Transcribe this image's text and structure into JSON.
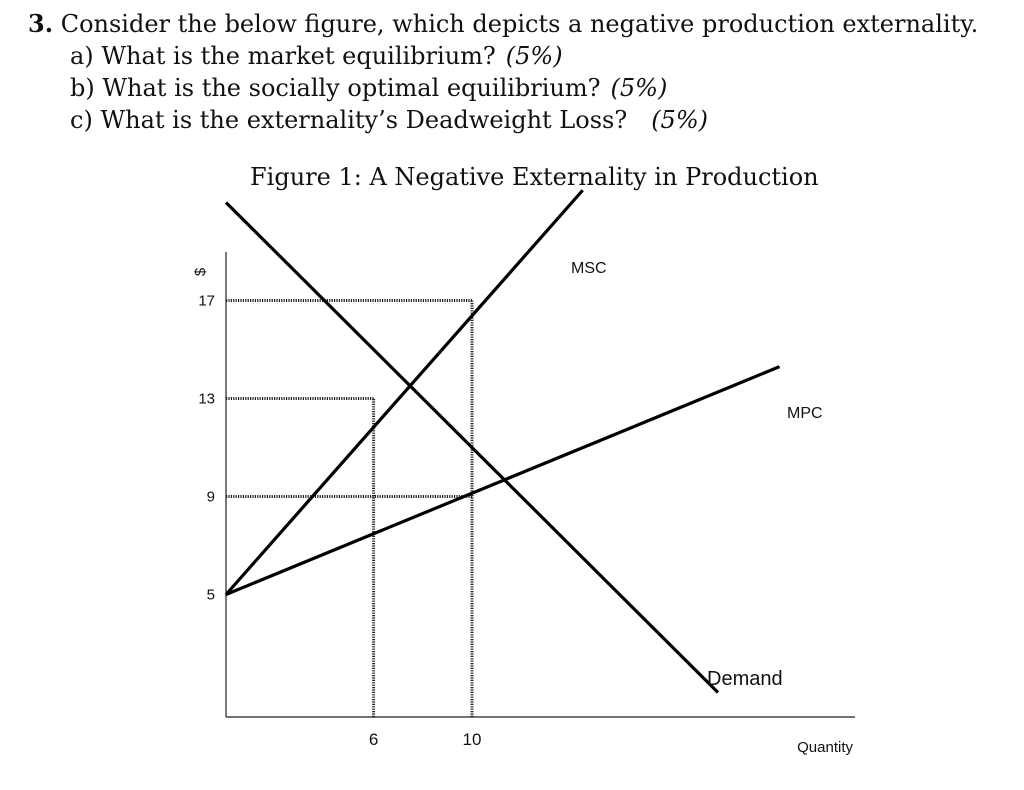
{
  "question": {
    "number": "3.",
    "prompt": "Consider the below figure, which depicts a negative production externality.",
    "parts": [
      {
        "label": "a)",
        "text": "What is the market equilibrium?",
        "points": "(5%)"
      },
      {
        "label": "b)",
        "text": "What is the socially optimal equilibrium?",
        "points": "(5%)"
      },
      {
        "label": "c)",
        "text": "What is the externality’s Deadweight Loss?",
        "points": "(5%)"
      }
    ]
  },
  "figure": {
    "caption": "Figure 1: A Negative Externality in Production"
  },
  "chart_data": {
    "type": "line",
    "ylabel": "$",
    "xlabel": "Quantity",
    "y_ticks": [
      5,
      9,
      13,
      17
    ],
    "x_ticks": [
      6,
      10
    ],
    "series": [
      {
        "name": "Demand",
        "points": [
          [
            0,
            21
          ],
          [
            20,
            1
          ]
        ]
      },
      {
        "name": "MSC",
        "points": [
          [
            0,
            5
          ],
          [
            14.5,
            21.5
          ]
        ]
      },
      {
        "name": "MPC",
        "points": [
          [
            0,
            5
          ],
          [
            22.5,
            14.3
          ]
        ]
      }
    ],
    "reference_lines": [
      {
        "from": [
          0,
          17
        ],
        "to": [
          10,
          17
        ]
      },
      {
        "from": [
          0,
          13
        ],
        "to": [
          6,
          13
        ]
      },
      {
        "from": [
          0,
          9
        ],
        "to": [
          10,
          9
        ]
      },
      {
        "from": [
          6,
          0
        ],
        "to": [
          6,
          13
        ]
      },
      {
        "from": [
          10,
          0
        ],
        "to": [
          10,
          17
        ]
      }
    ],
    "colors": {
      "lines": "#000000",
      "guides": "#222222"
    }
  }
}
